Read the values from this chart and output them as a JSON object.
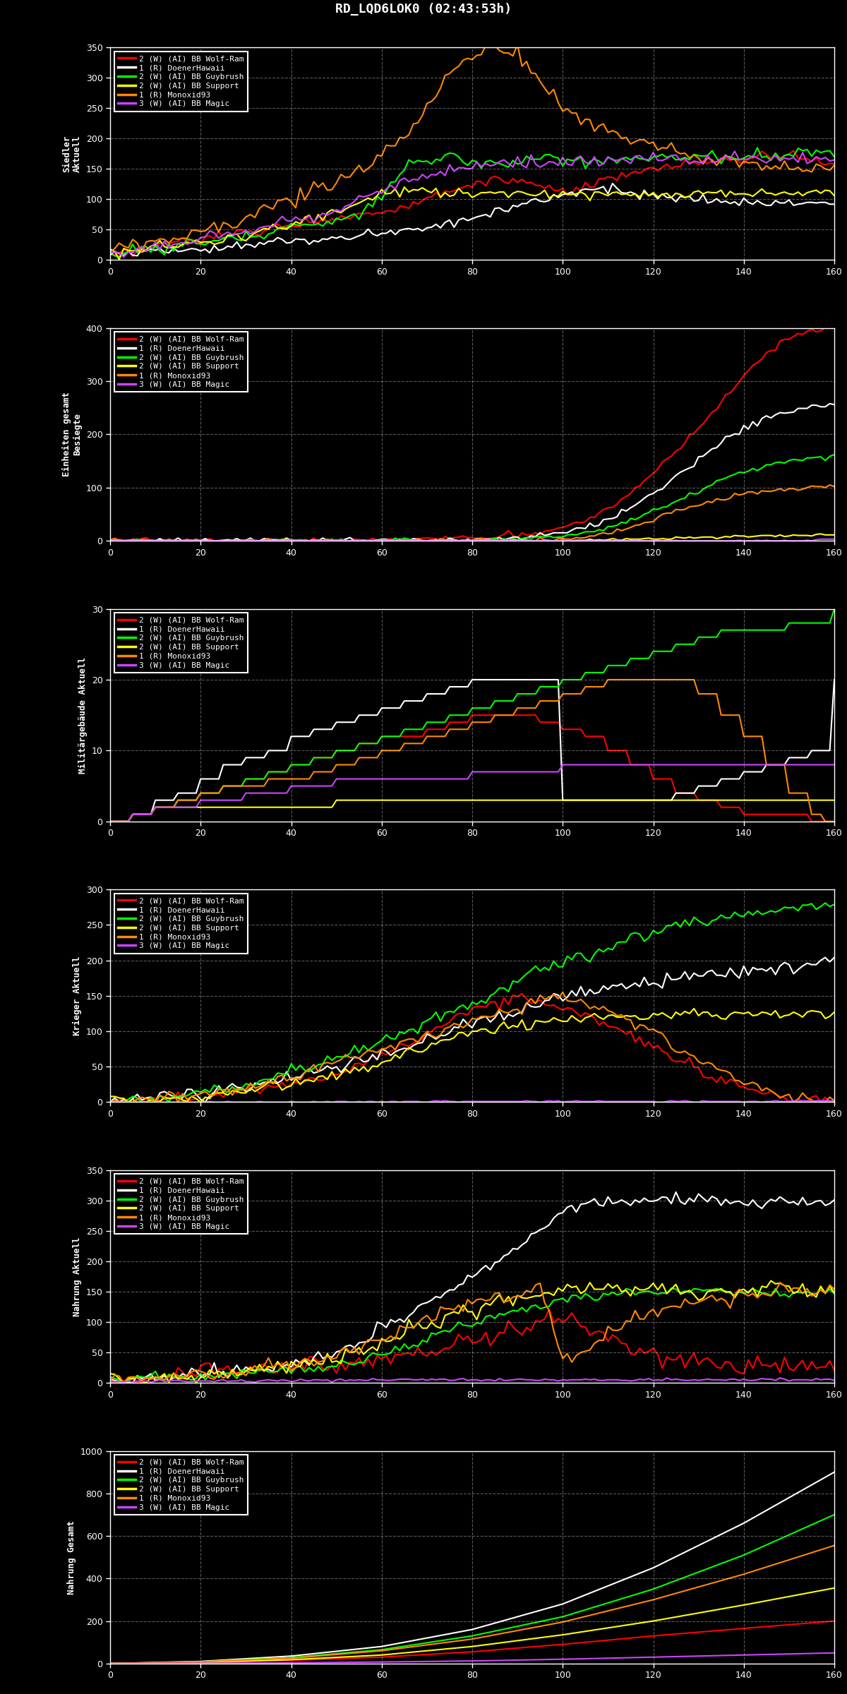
{
  "title": "RD_LQD6LOK0 (02:43:53h)",
  "background_color": "#000000",
  "text_color": "#ffffff",
  "x_max": 160,
  "x_ticks": [
    0,
    20,
    40,
    60,
    80,
    100,
    120,
    140,
    160
  ],
  "subplots": [
    {
      "ylabel": "Siedler\nAktuell",
      "ylim": [
        0,
        350
      ],
      "yticks": [
        0,
        50,
        100,
        150,
        200,
        250,
        300,
        350
      ]
    },
    {
      "ylabel": "Einheiten gesamt\nBesiegte",
      "ylim": [
        0,
        400
      ],
      "yticks": [
        0,
        100,
        200,
        300,
        400
      ]
    },
    {
      "ylabel": "Militärgebäude Aktuell",
      "ylim": [
        0,
        30
      ],
      "yticks": [
        0,
        10,
        20,
        30
      ]
    },
    {
      "ylabel": "Krieger Aktuell",
      "ylim": [
        0,
        300
      ],
      "yticks": [
        0,
        50,
        100,
        150,
        200,
        250,
        300
      ]
    },
    {
      "ylabel": "Nahrung Aktuell",
      "ylim": [
        0,
        350
      ],
      "yticks": [
        0,
        50,
        100,
        150,
        200,
        250,
        300,
        350
      ]
    },
    {
      "ylabel": "Nahrung Gesamt",
      "ylim": [
        0,
        1000
      ],
      "yticks": [
        0,
        200,
        400,
        600,
        800,
        1000
      ]
    }
  ],
  "series": [
    {
      "label": "2 (W) (AI) BB Wolf-Ram",
      "color": "#ff0000"
    },
    {
      "label": "1 (R) DoenerHawaii",
      "color": "#ffffff"
    },
    {
      "label": "2 (W) (AI) BB Guybrush",
      "color": "#00ff00"
    },
    {
      "label": "2 (W) (AI) BB Support",
      "color": "#ffff00"
    },
    {
      "label": "1 (R) Monoxid93",
      "color": "#ff8800"
    },
    {
      "label": "3 (W) (AI) BB Magic",
      "color": "#cc44ff"
    }
  ]
}
